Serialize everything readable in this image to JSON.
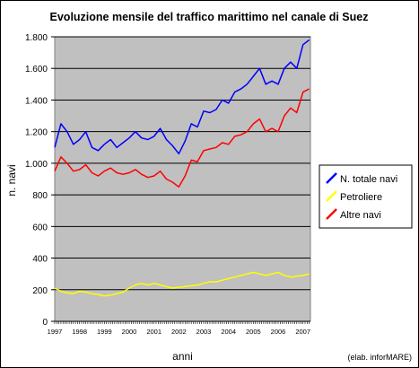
{
  "chart_data": {
    "type": "line",
    "title": "Evoluzione mensile del traffico marittimo nel canale di Suez",
    "xlabel": "anni",
    "ylabel": "n. navi",
    "credit": "(elab. inforMARE)",
    "xlim": [
      1997,
      2007.3
    ],
    "ylim": [
      0,
      1800
    ],
    "yticks": [
      0,
      200,
      400,
      600,
      800,
      1000,
      1200,
      1400,
      1600,
      1800
    ],
    "ytick_labels": [
      "0",
      "200",
      "400",
      "600",
      "800",
      "1.000",
      "1.200",
      "1.400",
      "1.600",
      "1.800"
    ],
    "xticks": [
      1997,
      1998,
      1999,
      2000,
      2001,
      2002,
      2003,
      2004,
      2005,
      2006,
      2007
    ],
    "xtick_labels": [
      "1997",
      "1998",
      "1999",
      "2000",
      "2001",
      "2002",
      "2003",
      "2004",
      "2005",
      "2006",
      "2007"
    ],
    "grid": "horizontal",
    "legend_position": "right",
    "plot_background": "#c0c0c0",
    "series": [
      {
        "name": "N. totale navi",
        "color": "#0000ff",
        "x": [
          1997.0,
          1997.25,
          1997.5,
          1997.75,
          1998.0,
          1998.25,
          1998.5,
          1998.75,
          1999.0,
          1999.25,
          1999.5,
          1999.75,
          2000.0,
          2000.25,
          2000.5,
          2000.75,
          2001.0,
          2001.25,
          2001.5,
          2001.75,
          2002.0,
          2002.25,
          2002.5,
          2002.75,
          2003.0,
          2003.25,
          2003.5,
          2003.75,
          2004.0,
          2004.25,
          2004.5,
          2004.75,
          2005.0,
          2005.25,
          2005.5,
          2005.75,
          2006.0,
          2006.25,
          2006.5,
          2006.75,
          2007.0,
          2007.25
        ],
        "values": [
          1100,
          1250,
          1200,
          1120,
          1150,
          1200,
          1100,
          1080,
          1120,
          1150,
          1100,
          1130,
          1160,
          1200,
          1160,
          1150,
          1170,
          1220,
          1150,
          1110,
          1060,
          1140,
          1250,
          1230,
          1330,
          1320,
          1340,
          1400,
          1380,
          1450,
          1470,
          1500,
          1550,
          1600,
          1500,
          1520,
          1500,
          1600,
          1640,
          1600,
          1750,
          1780
        ]
      },
      {
        "name": "Petroliere",
        "color": "#ffff00",
        "x": [
          1997.0,
          1997.25,
          1997.5,
          1997.75,
          1998.0,
          1998.25,
          1998.5,
          1998.75,
          1999.0,
          1999.25,
          1999.5,
          1999.75,
          2000.0,
          2000.25,
          2000.5,
          2000.75,
          2001.0,
          2001.25,
          2001.5,
          2001.75,
          2002.0,
          2002.25,
          2002.5,
          2002.75,
          2003.0,
          2003.25,
          2003.5,
          2003.75,
          2004.0,
          2004.25,
          2004.5,
          2004.75,
          2005.0,
          2005.25,
          2005.5,
          2005.75,
          2006.0,
          2006.25,
          2006.5,
          2006.75,
          2007.0,
          2007.25
        ],
        "values": [
          210,
          190,
          180,
          175,
          190,
          185,
          175,
          170,
          160,
          165,
          175,
          185,
          210,
          230,
          240,
          230,
          240,
          230,
          220,
          210,
          215,
          220,
          225,
          230,
          240,
          250,
          250,
          260,
          270,
          280,
          290,
          300,
          310,
          300,
          290,
          300,
          310,
          290,
          280,
          285,
          290,
          300
        ]
      },
      {
        "name": "Altre navi",
        "color": "#ff0000",
        "x": [
          1997.0,
          1997.25,
          1997.5,
          1997.75,
          1998.0,
          1998.25,
          1998.5,
          1998.75,
          1999.0,
          1999.25,
          1999.5,
          1999.75,
          2000.0,
          2000.25,
          2000.5,
          2000.75,
          2001.0,
          2001.25,
          2001.5,
          2001.75,
          2002.0,
          2002.25,
          2002.5,
          2002.75,
          2003.0,
          2003.25,
          2003.5,
          2003.75,
          2004.0,
          2004.25,
          2004.5,
          2004.75,
          2005.0,
          2005.25,
          2005.5,
          2005.75,
          2006.0,
          2006.25,
          2006.5,
          2006.75,
          2007.0,
          2007.25
        ],
        "values": [
          950,
          1040,
          1000,
          950,
          960,
          990,
          940,
          920,
          950,
          970,
          940,
          930,
          940,
          960,
          930,
          910,
          920,
          950,
          900,
          880,
          850,
          920,
          1020,
          1010,
          1080,
          1090,
          1100,
          1130,
          1120,
          1170,
          1180,
          1200,
          1250,
          1280,
          1200,
          1220,
          1200,
          1300,
          1350,
          1320,
          1450,
          1470
        ]
      }
    ]
  }
}
